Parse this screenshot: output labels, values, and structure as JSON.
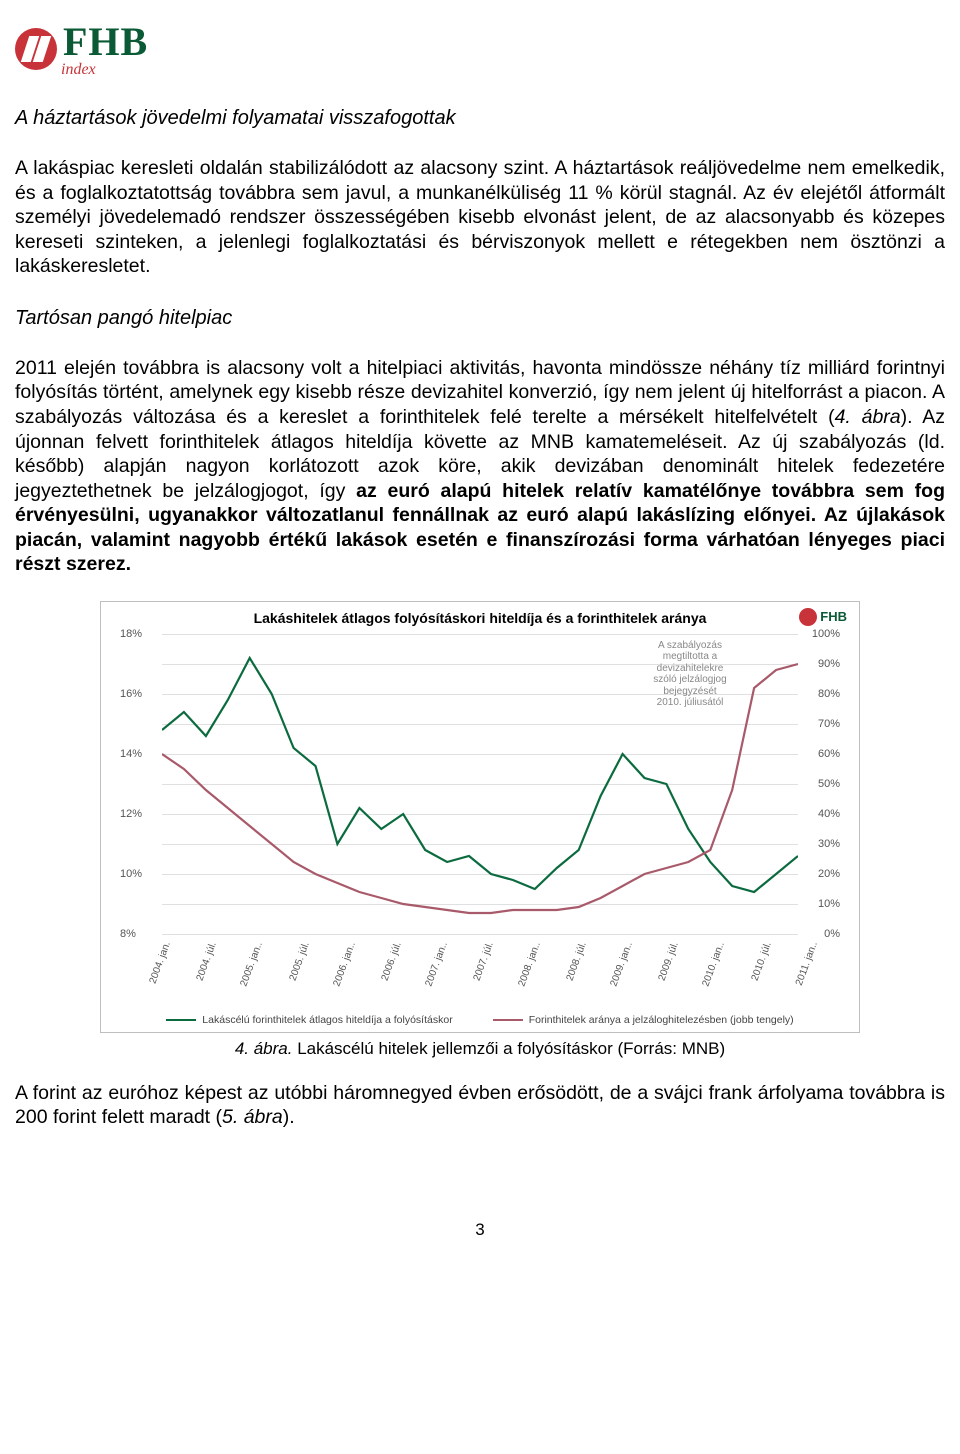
{
  "logo": {
    "brand": "FHB",
    "sub": "index"
  },
  "section1_title": "A háztartások jövedelmi folyamatai visszafogottak",
  "para1": "A lakáspiac keresleti oldalán stabilizálódott az alacsony szint. A háztartások reáljövedelme nem emelkedik, és a foglalkoztatottság továbbra sem javul, a munkanélküliség 11 % körül stagnál. Az év elejétől átformált személyi jövedelemadó rendszer összességében kisebb elvonást jelent, de az alacsonyabb és közepes kereseti szinteken, a jelenlegi foglalkoztatási és bérviszonyok mellett e rétegekben nem ösztönzi a lakáskeresletet.",
  "section2_title": "Tartósan pangó hitelpiac",
  "para2_part1": "2011 elején továbbra is alacsony volt a hitelpiaci aktivitás, havonta mindössze néhány tíz milliárd forintnyi folyósítás történt, amelynek egy kisebb része devizahitel konverzió, így nem jelent új hitelforrást a piacon. A szabályozás változása és a kereslet a forinthitelek felé terelte a mérsékelt hitelfelvételt (",
  "para2_fig_ref": "4. ábra",
  "para2_part2": "). Az újonnan felvett forinthitelek átlagos hiteldíja követte az MNB kamatemeléseit. Az új szabályozás (ld. később) alapján nagyon korlátozott azok köre, akik devizában denominált hitelek fedezetére jegyeztethetnek be jelzálogjogot, így ",
  "para2_bold1": "az euró alapú hitelek relatív kamatélőnye továbbra sem fog érvényesülni, ugyanakkor változatlanul fennállnak az euró alapú lakáslízing előnyei. Az újlakások piacán, valamint nagyobb értékű lakások esetén e finanszírozási forma várhatóan lényeges piaci részt szerez.",
  "chart": {
    "title": "Lakáshitelek átlagos folyósításkori hiteldíja és a forinthitelek aránya",
    "left_axis": {
      "min": 8,
      "max": 18,
      "step": 2,
      "suffix": "%"
    },
    "right_axis": {
      "min": 0,
      "max": 100,
      "step": 10,
      "suffix": "%"
    },
    "grid_color": "#e0e0e0",
    "border_color": "#bfbfbf",
    "annotation_lines": [
      "A szabályozás",
      "megtiltotta a",
      "devizahitelekre",
      "szóló jelzálogjog",
      "bejegyzését",
      "2010. júliusától"
    ],
    "x_categories": [
      "2004. jan.",
      "2004. júl.",
      "2005. jan..",
      "2005. júl.",
      "2006. jan..",
      "2006. júl.",
      "2007. jan..",
      "2007. júl.",
      "2008. jan..",
      "2008. júl.",
      "2009. jan..",
      "2009. júl.",
      "2010. jan..",
      "2010. júl.",
      "2011. jan.."
    ],
    "series": {
      "hiteldij": {
        "color": "#0b6b3f",
        "label": "Lakáscélú forinthitelek átlagos hiteldíja a folyósításkor",
        "points": [
          14.8,
          15.4,
          14.6,
          15.8,
          17.2,
          16.0,
          14.2,
          13.6,
          11.0,
          12.2,
          11.5,
          12.0,
          10.8,
          10.4,
          10.6,
          10.0,
          9.8,
          9.5,
          10.2,
          10.8,
          12.6,
          14.0,
          13.2,
          13.0,
          11.5,
          10.4,
          9.6,
          9.4,
          10.0,
          10.6
        ]
      },
      "arany": {
        "color": "#a85a6a",
        "label": "Forinthitelek aránya a jelzáloghitelezésben (jobb tengely)",
        "points": [
          60,
          55,
          48,
          42,
          36,
          30,
          24,
          20,
          17,
          14,
          12,
          10,
          9,
          8,
          7,
          7,
          8,
          8,
          8,
          9,
          12,
          16,
          20,
          22,
          24,
          28,
          48,
          82,
          88,
          90
        ]
      }
    }
  },
  "caption_num": "4. ábra.",
  "caption_text": " Lakáscélú hitelek jellemzői a folyósításkor (Forrás: MNB)",
  "para3_part1": "A forint az euróhoz képest az utóbbi háromnegyed évben erősödött, de a svájci frank árfolyama továbbra is 200 forint felett maradt (",
  "para3_fig_ref": "5. ábra",
  "para3_part2": ").",
  "page_number": "3"
}
